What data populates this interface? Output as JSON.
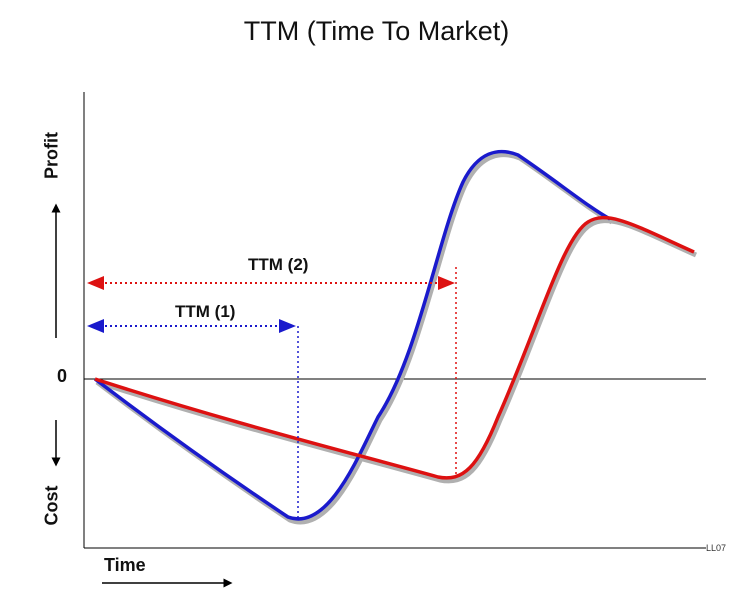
{
  "title": "TTM (Time To Market)",
  "axes": {
    "y_top_label": "Profit",
    "y_bottom_label": "Cost",
    "zero_label": "0",
    "x_label": "Time"
  },
  "annotations": {
    "ttm2": "TTM (2)",
    "ttm1": "TTM (1)",
    "corner_code": "LL07"
  },
  "colors": {
    "curve1": "#1a1acc",
    "curve2": "#dd1111",
    "axis": "#000000"
  }
}
